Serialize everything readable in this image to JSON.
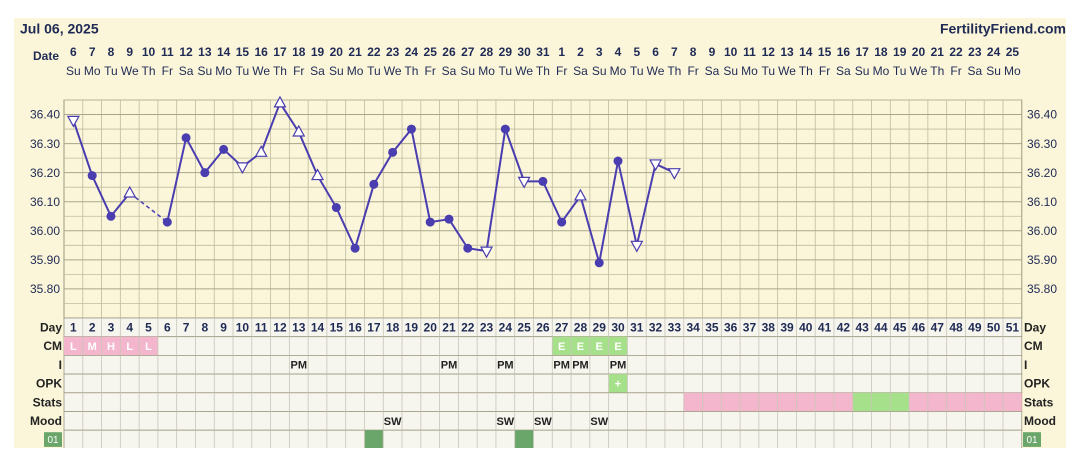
{
  "header": {
    "date": "Jul 06, 2025",
    "site": "FertilityFriend.com"
  },
  "chart_data": {
    "type": "line",
    "x_label": "Date",
    "categories": [
      "6",
      "7",
      "8",
      "9",
      "10",
      "11",
      "12",
      "13",
      "14",
      "15",
      "16",
      "17",
      "18",
      "19",
      "20",
      "21",
      "22",
      "23",
      "24",
      "25",
      "26",
      "27",
      "28",
      "29",
      "30",
      "31",
      "1",
      "2",
      "3",
      "4",
      "5",
      "6",
      "7",
      "8",
      "9",
      "10",
      "11",
      "12",
      "13",
      "14",
      "15",
      "16",
      "17",
      "18",
      "19",
      "20",
      "21",
      "22",
      "23",
      "24",
      "25"
    ],
    "weekdays": [
      "Su",
      "Mo",
      "Tu",
      "We",
      "Th",
      "Fr",
      "Sa",
      "Su",
      "Mo",
      "Tu",
      "We",
      "Th",
      "Fr",
      "Sa",
      "Su",
      "Mo",
      "Tu",
      "We",
      "Th",
      "Fr",
      "Sa",
      "Su",
      "Mo",
      "Tu",
      "We",
      "Th",
      "Fr",
      "Sa",
      "Su",
      "Mo",
      "Tu",
      "We",
      "Th",
      "Fr",
      "Sa",
      "Su",
      "Mo",
      "Tu",
      "We",
      "Th",
      "Fr",
      "Sa",
      "Su",
      "Mo",
      "Tu",
      "We",
      "Th",
      "Fr",
      "Sa",
      "Su",
      "Mo"
    ],
    "series": [
      {
        "color": "#4a3db0",
        "values": [
          36.38,
          36.19,
          36.05,
          36.13,
          null,
          36.03,
          36.32,
          36.2,
          36.28,
          36.22,
          36.27,
          36.44,
          36.34,
          36.19,
          36.08,
          35.94,
          36.16,
          36.27,
          36.35,
          36.03,
          36.04,
          35.94,
          35.93,
          36.35,
          36.17,
          36.17,
          36.03,
          36.12,
          35.89,
          36.24,
          35.95,
          36.23,
          36.2,
          null,
          null,
          null,
          null,
          null,
          null,
          null,
          null,
          null,
          null,
          null,
          null,
          null,
          null,
          null,
          null,
          null,
          null
        ],
        "markers": [
          "down",
          "circle",
          "circle",
          "up",
          null,
          "circle",
          "circle",
          "circle",
          "circle",
          "down",
          "up",
          "up",
          "up",
          "up",
          "circle",
          "circle",
          "circle",
          "circle",
          "circle",
          "circle",
          "circle",
          "circle",
          "down",
          "circle",
          "down",
          "circle",
          "circle",
          "up",
          "circle",
          "circle",
          "down",
          "down",
          "down",
          null,
          null,
          null,
          null,
          null,
          null,
          null,
          null,
          null,
          null,
          null,
          null,
          null,
          null,
          null,
          null,
          null,
          null
        ]
      }
    ],
    "ylim": [
      35.7,
      36.45
    ],
    "yticks": [
      {
        "value": 35.8,
        "label": "35.80"
      },
      {
        "value": 35.9,
        "label": "35.90"
      },
      {
        "value": 36.0,
        "label": "36.00"
      },
      {
        "value": 36.1,
        "label": "36.10"
      },
      {
        "value": 36.2,
        "label": "36.20"
      },
      {
        "value": 36.3,
        "label": "36.30"
      },
      {
        "value": 36.4,
        "label": "36.40"
      }
    ],
    "y_minor_ticks": [
      35.75,
      35.85,
      35.95,
      36.05,
      36.15,
      36.25,
      36.35,
      36.45
    ],
    "grid": true
  },
  "table": {
    "rows": [
      {
        "label": "Day",
        "cells": [
          1,
          2,
          3,
          4,
          5,
          6,
          7,
          8,
          9,
          10,
          11,
          12,
          13,
          14,
          15,
          16,
          17,
          18,
          19,
          20,
          21,
          22,
          23,
          24,
          25,
          26,
          27,
          28,
          29,
          30,
          31,
          32,
          33,
          34,
          35,
          36,
          37,
          38,
          39,
          40,
          41,
          42,
          43,
          44,
          45,
          46,
          47,
          48,
          49,
          50,
          51
        ]
      },
      {
        "label": "CM",
        "cells": [
          "L",
          "M",
          "H",
          "L",
          "L",
          null,
          null,
          null,
          null,
          null,
          null,
          null,
          null,
          null,
          null,
          null,
          null,
          null,
          null,
          null,
          null,
          null,
          null,
          null,
          null,
          null,
          "E",
          "E",
          "E",
          "E",
          null,
          null,
          null,
          null,
          null,
          null,
          null,
          null,
          null,
          null,
          null,
          null,
          null,
          null,
          null,
          null,
          null,
          null,
          null,
          null,
          null
        ],
        "fills": [
          "#f4b6cc",
          "#f4b6cc",
          "#f4b6cc",
          "#f4b6cc",
          "#f4b6cc",
          null,
          null,
          null,
          null,
          null,
          null,
          null,
          null,
          null,
          null,
          null,
          null,
          null,
          null,
          null,
          null,
          null,
          null,
          null,
          null,
          null,
          "#a6e08a",
          "#a6e08a",
          "#a6e08a",
          "#a6e08a",
          null,
          null,
          null,
          null,
          null,
          null,
          null,
          null,
          null,
          null,
          null,
          null,
          null,
          null,
          null,
          null,
          null,
          null,
          null,
          null,
          null
        ]
      },
      {
        "label": "I",
        "cells": [
          null,
          null,
          null,
          null,
          null,
          null,
          null,
          null,
          null,
          null,
          null,
          null,
          "PM",
          null,
          null,
          null,
          null,
          null,
          null,
          null,
          "PM",
          null,
          null,
          "PM",
          null,
          null,
          "PM",
          "PM",
          null,
          "PM",
          null,
          null,
          null,
          null,
          null,
          null,
          null,
          null,
          null,
          null,
          null,
          null,
          null,
          null,
          null,
          null,
          null,
          null,
          null,
          null,
          null
        ]
      },
      {
        "label": "OPK",
        "cells": [
          null,
          null,
          null,
          null,
          null,
          null,
          null,
          null,
          null,
          null,
          null,
          null,
          null,
          null,
          null,
          null,
          null,
          null,
          null,
          null,
          null,
          null,
          null,
          null,
          null,
          null,
          null,
          null,
          null,
          "+",
          null,
          null,
          null,
          null,
          null,
          null,
          null,
          null,
          null,
          null,
          null,
          null,
          null,
          null,
          null,
          null,
          null,
          null,
          null,
          null,
          null
        ],
        "fills": [
          null,
          null,
          null,
          null,
          null,
          null,
          null,
          null,
          null,
          null,
          null,
          null,
          null,
          null,
          null,
          null,
          null,
          null,
          null,
          null,
          null,
          null,
          null,
          null,
          null,
          null,
          null,
          null,
          null,
          "#a6e08a",
          null,
          null,
          null,
          null,
          null,
          null,
          null,
          null,
          null,
          null,
          null,
          null,
          null,
          null,
          null,
          null,
          null,
          null,
          null,
          null,
          null
        ]
      },
      {
        "label": "Stats",
        "fills": [
          null,
          null,
          null,
          null,
          null,
          null,
          null,
          null,
          null,
          null,
          null,
          null,
          null,
          null,
          null,
          null,
          null,
          null,
          null,
          null,
          null,
          null,
          null,
          null,
          null,
          null,
          null,
          null,
          null,
          null,
          null,
          null,
          null,
          "#f4b6cc",
          "#f4b6cc",
          "#f4b6cc",
          "#f4b6cc",
          "#f4b6cc",
          "#f4b6cc",
          "#f4b6cc",
          "#f4b6cc",
          "#f4b6cc",
          "#a6e08a",
          "#a6e08a",
          "#a6e08a",
          "#f4b6cc",
          "#f4b6cc",
          "#f4b6cc",
          "#f4b6cc",
          "#f4b6cc",
          "#f4b6cc"
        ]
      },
      {
        "label": "Mood",
        "cells": [
          null,
          null,
          null,
          null,
          null,
          null,
          null,
          null,
          null,
          null,
          null,
          null,
          null,
          null,
          null,
          null,
          null,
          "SW",
          null,
          null,
          null,
          null,
          null,
          "SW",
          null,
          "SW",
          null,
          null,
          "SW",
          null,
          null,
          null,
          null,
          null,
          null,
          null,
          null,
          null,
          null,
          null,
          null,
          null,
          null,
          null,
          null,
          null,
          null,
          null,
          null,
          null,
          null
        ]
      },
      {
        "label": "01",
        "fills": [
          null,
          null,
          null,
          null,
          null,
          null,
          null,
          null,
          null,
          null,
          null,
          null,
          null,
          null,
          null,
          null,
          "#6aa56a",
          null,
          null,
          null,
          null,
          null,
          null,
          null,
          "#6aa56a",
          null,
          null,
          null,
          null,
          null,
          null,
          null,
          null,
          null,
          null,
          null,
          null,
          null,
          null,
          null,
          null,
          null,
          null,
          null,
          null,
          null,
          null,
          null,
          null,
          null,
          null
        ]
      }
    ]
  }
}
